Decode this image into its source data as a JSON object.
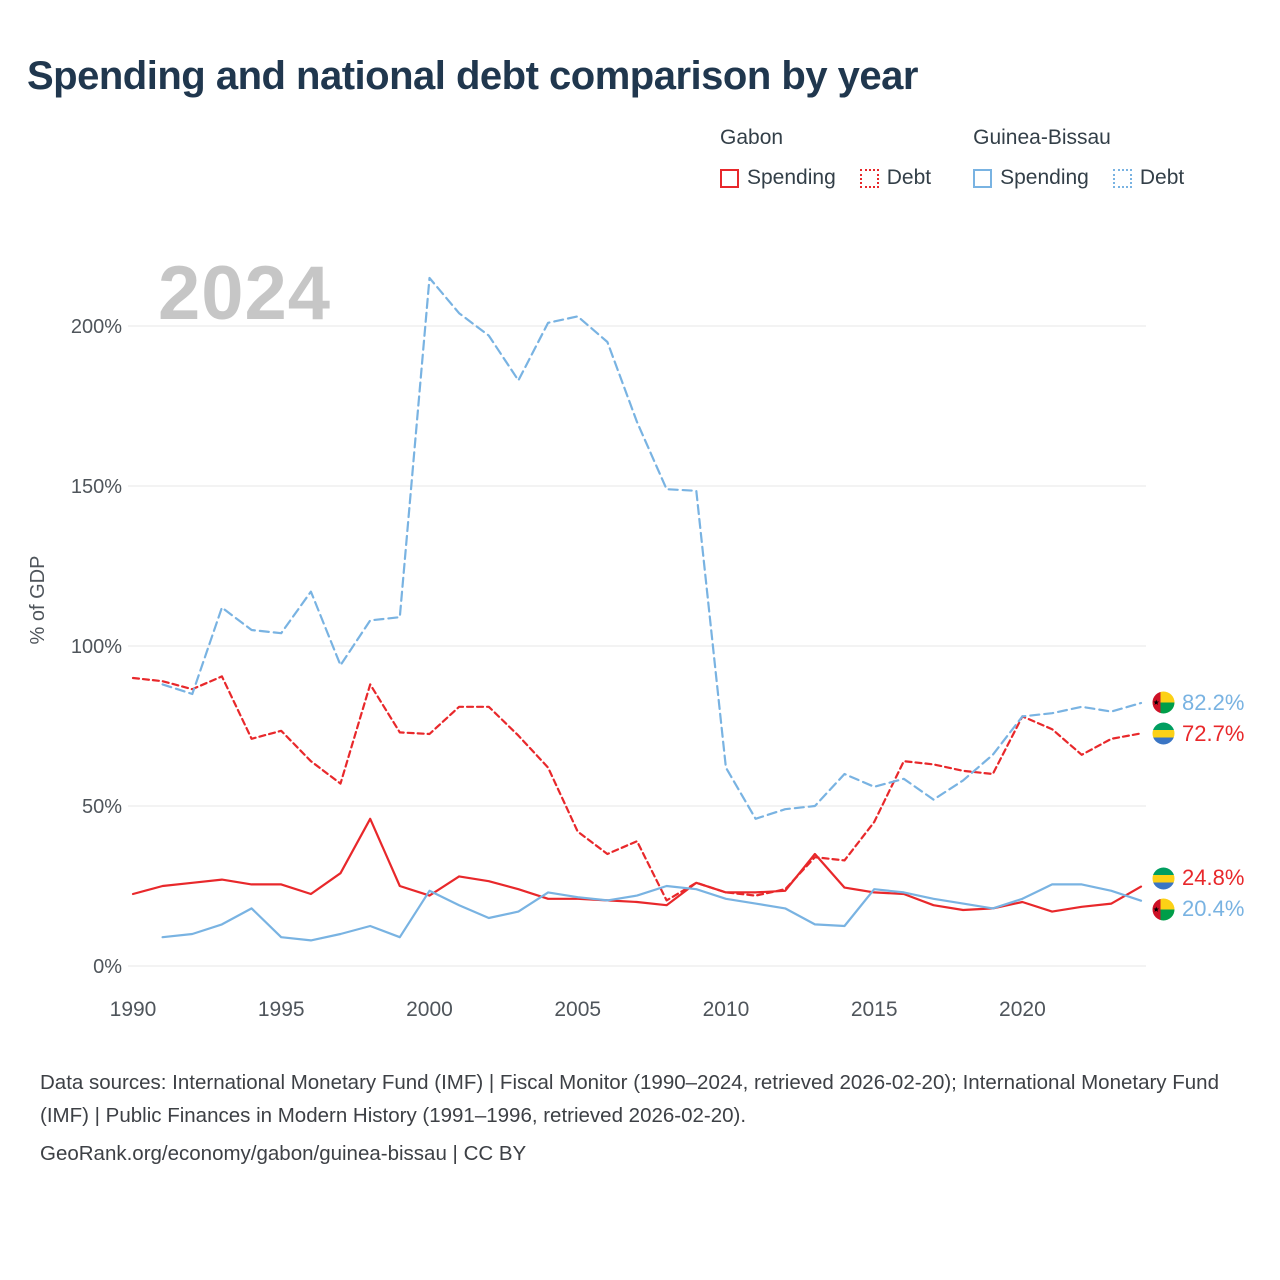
{
  "title": "Spending and national debt comparison by year",
  "watermark": "2024",
  "legend": {
    "groups": [
      {
        "country": "Gabon",
        "color": "#e8282b",
        "items": [
          {
            "label": "Spending",
            "style": "solid"
          },
          {
            "label": "Debt",
            "style": "dotted"
          }
        ]
      },
      {
        "country": "Guinea-Bissau",
        "color": "#79b3e2",
        "items": [
          {
            "label": "Spending",
            "style": "solid"
          },
          {
            "label": "Debt",
            "style": "dotted"
          }
        ]
      }
    ]
  },
  "chart_data": {
    "type": "line",
    "title": "Spending and national debt comparison by year",
    "xlabel": "",
    "ylabel": "% of GDP",
    "ylim": [
      0,
      220
    ],
    "yticks": [
      0,
      50,
      100,
      150,
      200
    ],
    "ytick_suffix": "%",
    "xticks": [
      1990,
      1995,
      2000,
      2005,
      2010,
      2015,
      2020
    ],
    "grid": true,
    "x": [
      1990,
      1991,
      1992,
      1993,
      1994,
      1995,
      1996,
      1997,
      1998,
      1999,
      2000,
      2001,
      2002,
      2003,
      2004,
      2005,
      2006,
      2007,
      2008,
      2009,
      2010,
      2011,
      2012,
      2013,
      2014,
      2015,
      2016,
      2017,
      2018,
      2019,
      2020,
      2021,
      2022,
      2023,
      2024
    ],
    "series": [
      {
        "name": "Gabon Spending",
        "color": "#e8282b",
        "dash": null,
        "values": [
          22.5,
          25,
          26,
          27,
          25.5,
          25.5,
          22.5,
          29,
          46,
          25,
          22,
          28,
          26.5,
          24,
          21,
          21,
          20.5,
          20,
          19,
          26,
          23,
          23,
          23.5,
          35,
          24.5,
          23,
          22.5,
          19,
          17.5,
          18,
          20,
          17,
          18.5,
          19.5,
          24.8
        ]
      },
      {
        "name": "Gabon Debt",
        "color": "#e8282b",
        "dash": "6 4",
        "values": [
          90,
          89,
          86.5,
          90.5,
          71,
          73.5,
          64,
          57,
          88,
          73,
          72.5,
          81,
          81,
          72,
          62,
          42,
          35,
          39,
          20.5,
          26,
          23,
          22,
          24,
          34,
          33,
          45,
          64,
          63,
          61,
          60,
          78,
          74,
          66,
          71,
          72.7
        ]
      },
      {
        "name": "Guinea-Bissau Spending",
        "color": "#79b3e2",
        "dash": null,
        "values": [
          null,
          9,
          10,
          13,
          18,
          9,
          8,
          10,
          12.5,
          9,
          23.5,
          19,
          15,
          17,
          23,
          21.5,
          20.5,
          22,
          25,
          24,
          21,
          19.5,
          18,
          13,
          12.5,
          24,
          23,
          21,
          19.5,
          18,
          21,
          25.5,
          25.5,
          23.5,
          20.4
        ]
      },
      {
        "name": "Guinea-Bissau Debt",
        "color": "#79b3e2",
        "dash": "9 5",
        "values": [
          null,
          88,
          85,
          112,
          105,
          104,
          117,
          94,
          108,
          109,
          215,
          204,
          197,
          183,
          201,
          203,
          195,
          170,
          149,
          148.5,
          62,
          46,
          49,
          50,
          60,
          56,
          58.5,
          52,
          58,
          66,
          78,
          79,
          81,
          79.5,
          82.2
        ]
      }
    ],
    "end_labels": [
      {
        "text": "82.2%",
        "value": 82.2,
        "color": "#79b3e2",
        "flag": "guinea-bissau"
      },
      {
        "text": "72.7%",
        "value": 72.7,
        "color": "#e8282b",
        "flag": "gabon"
      },
      {
        "text": "24.8%",
        "value": 24.8,
        "color": "#e8282b",
        "flag": "gabon"
      },
      {
        "text": "20.4%",
        "value": 20.4,
        "color": "#79b3e2",
        "flag": "guinea-bissau"
      }
    ],
    "legend_position": "top-right"
  },
  "flags": {
    "gabon": {
      "green": "#009e60",
      "yellow": "#fcd116",
      "blue": "#3a75c4"
    },
    "guinea_bissau": {
      "red": "#ce1126",
      "yellow": "#fcd116",
      "green": "#009e49",
      "star": "#000000"
    }
  },
  "footer": {
    "line1": "Data sources: International Monetary Fund (IMF) | Fiscal Monitor (1990–2024, retrieved 2026-02-20); International Monetary Fund (IMF) | Public Finances in Modern History (1991–1996, retrieved 2026-02-20).",
    "line2": "GeoRank.org/economy/gabon/guinea-bissau | CC BY"
  }
}
